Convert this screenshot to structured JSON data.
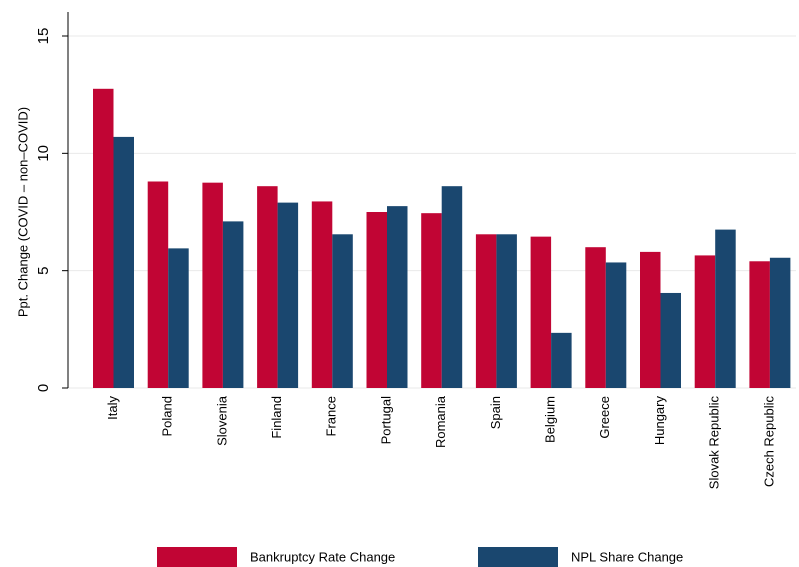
{
  "chart_data": {
    "type": "bar",
    "y_label": "Ppt. Change (COVID – non–COVID)",
    "categories": [
      "Italy",
      "Poland",
      "Slovenia",
      "Finland",
      "France",
      "Portugal",
      "Romania",
      "Spain",
      "Belgium",
      "Greece",
      "Hungary",
      "Slovak Republic",
      "Czech Republic"
    ],
    "series": [
      {
        "name": "Bankruptcy Rate Change",
        "color": "#c10534",
        "values": [
          12.75,
          8.8,
          8.75,
          8.6,
          7.95,
          7.5,
          7.45,
          6.55,
          6.45,
          6.0,
          5.8,
          5.65,
          5.4
        ]
      },
      {
        "name": "NPL Share Change",
        "color": "#1a476f",
        "values": [
          10.7,
          5.95,
          7.1,
          7.9,
          6.55,
          7.75,
          8.6,
          6.55,
          2.35,
          5.35,
          4.05,
          6.75,
          5.55
        ]
      }
    ],
    "ylim": [
      0,
      15
    ],
    "yticks": [
      0,
      5,
      10,
      15
    ],
    "grid": true,
    "legend": "bottom"
  }
}
